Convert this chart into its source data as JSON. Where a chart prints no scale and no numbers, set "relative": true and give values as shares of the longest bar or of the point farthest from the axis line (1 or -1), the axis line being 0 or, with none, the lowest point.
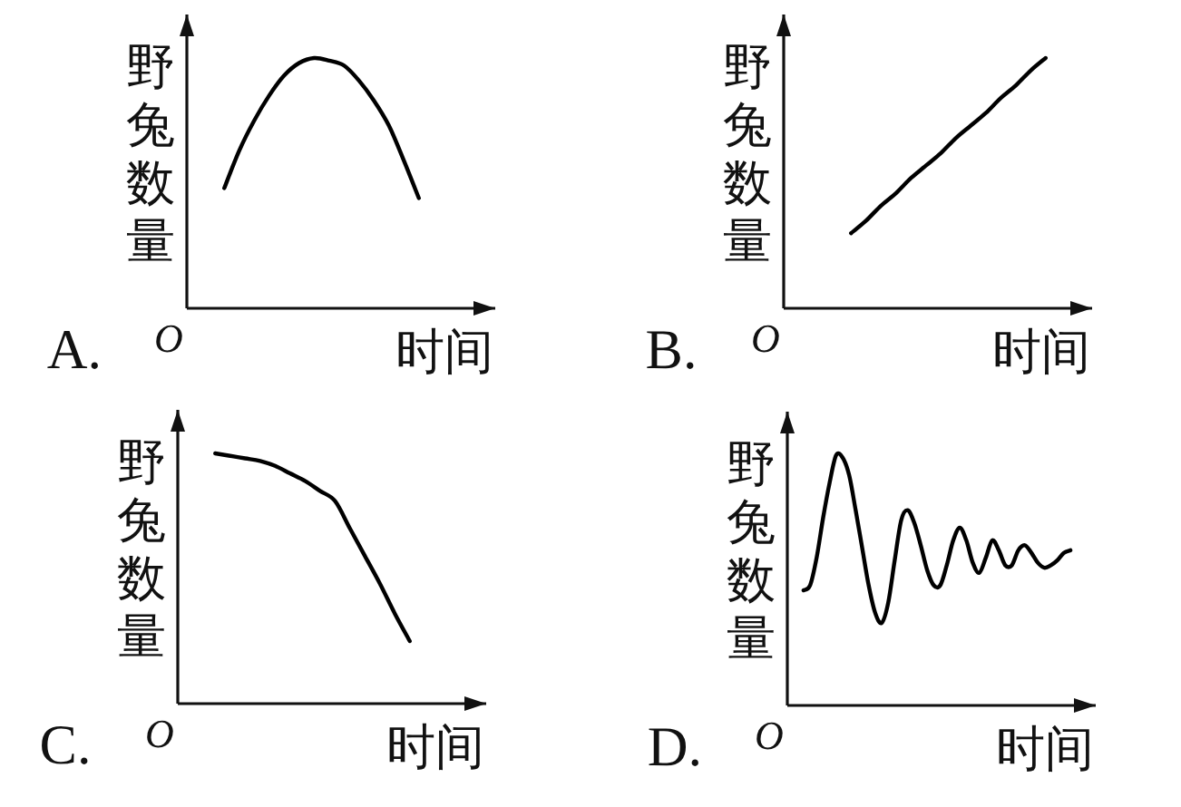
{
  "chart_data": [
    {
      "type": "line",
      "title": "A.",
      "xlabel": "时间",
      "ylabel": "野兔数量",
      "annotations": [
        "O"
      ],
      "relative": true,
      "color": "#000000",
      "categories": [
        null,
        null,
        null,
        null,
        null,
        null,
        null,
        null,
        null,
        null,
        null,
        null,
        null,
        null,
        null,
        null,
        null,
        null,
        null,
        null
      ],
      "values": [
        null,
        null,
        0.48,
        0.63,
        0.75,
        0.85,
        0.93,
        0.98,
        1.0,
        0.99,
        0.97,
        0.91,
        0.83,
        0.73,
        0.59,
        0.44,
        null,
        null,
        null,
        null
      ]
    },
    {
      "type": "line",
      "title": "B.",
      "xlabel": "时间",
      "ylabel": "野兔数量",
      "annotations": [
        "O"
      ],
      "relative": true,
      "color": "#000000",
      "categories": [
        null,
        null,
        null,
        null,
        null,
        null,
        null,
        null,
        null,
        null,
        null,
        null,
        null,
        null,
        null,
        null,
        null,
        null,
        null,
        null
      ],
      "values": [
        null,
        null,
        null,
        null,
        0.3,
        0.35,
        0.41,
        0.46,
        0.52,
        0.57,
        0.62,
        0.68,
        0.73,
        0.78,
        0.84,
        0.89,
        0.95,
        1.0,
        null,
        null
      ]
    },
    {
      "type": "line",
      "title": "C.",
      "xlabel": "时间",
      "ylabel": "野兔数量",
      "annotations": [
        "O"
      ],
      "relative": true,
      "color": "#000000",
      "categories": [
        null,
        null,
        null,
        null,
        null,
        null,
        null,
        null,
        null,
        null,
        null,
        null,
        null,
        null,
        null,
        null,
        null,
        null,
        null,
        null
      ],
      "values": [
        null,
        null,
        1.0,
        0.99,
        0.98,
        0.97,
        0.95,
        0.92,
        0.89,
        0.85,
        0.81,
        0.7,
        0.59,
        0.48,
        0.36,
        0.25,
        null,
        null,
        null,
        null
      ]
    },
    {
      "type": "line",
      "title": "D.",
      "xlabel": "时间",
      "ylabel": "野兔数量",
      "annotations": [
        "O"
      ],
      "relative": true,
      "color": "#000000",
      "categories": [
        null,
        null,
        null,
        null,
        null,
        null,
        null,
        null,
        null,
        null,
        null,
        null,
        null,
        null,
        null,
        null,
        null,
        null,
        null,
        null,
        null,
        null,
        null,
        null,
        null,
        null,
        null,
        null,
        null,
        null,
        null,
        null,
        null,
        null,
        null,
        null,
        null,
        null,
        null,
        null,
        null,
        null,
        null,
        null,
        null,
        null
      ],
      "values": [
        null,
        null,
        0.46,
        0.48,
        0.59,
        0.75,
        0.89,
        1.0,
        0.99,
        0.92,
        0.78,
        0.63,
        0.48,
        0.37,
        0.33,
        0.41,
        0.58,
        0.74,
        0.78,
        0.73,
        0.64,
        0.54,
        0.48,
        0.48,
        0.56,
        0.66,
        0.71,
        0.66,
        0.57,
        0.53,
        0.59,
        0.66,
        0.62,
        0.56,
        0.56,
        0.62,
        0.64,
        0.61,
        0.57,
        0.55,
        0.56,
        0.58,
        0.61,
        0.62,
        null,
        null
      ]
    }
  ]
}
